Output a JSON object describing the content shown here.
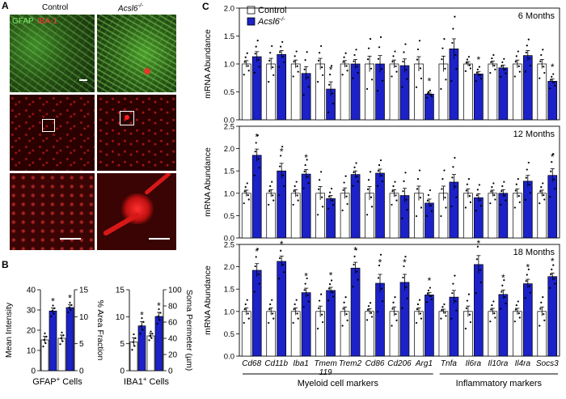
{
  "panel_a": {
    "letter": "A",
    "col_labels": [
      "Control",
      "Acsl6-/-"
    ],
    "stain_labels": {
      "gfap": "GFAP",
      "iba1": "IBA-1"
    }
  },
  "panel_b": {
    "letter": "B",
    "colors": {
      "control": "#ffffff",
      "acsl6": "#1c22c8"
    }
  },
  "panel_c": {
    "letter": "C",
    "legend": [
      "Control",
      "Acsl6-/-"
    ],
    "colors": {
      "control": "#ffffff",
      "acsl6": "#1c22c8"
    }
  },
  "chart_data": [
    {
      "type": "bar",
      "panel": "B-left",
      "xlabel": "GFAP+ Cells",
      "ylabel_left": "Mean Intensity",
      "ylabel_right": "% Area Fraction",
      "ylim_left": [
        0,
        40
      ],
      "ylim_right": [
        0,
        15
      ],
      "yticks_left": [
        0,
        10,
        20,
        30,
        40
      ],
      "yticks_right": [
        0,
        5,
        10,
        15
      ],
      "groups": [
        {
          "axis": "left",
          "control": 15.2,
          "acsl6": 29.5,
          "control_err": 1.8,
          "acsl6_err": 1.5,
          "significant": true
        },
        {
          "axis": "right",
          "control": 6.0,
          "acsl6": 11.7,
          "control_err": 0.6,
          "acsl6_err": 0.5,
          "significant": true
        }
      ]
    },
    {
      "type": "bar",
      "panel": "B-right",
      "xlabel": "IBA1+ Cells",
      "ylabel_right": "Soma Perimeter (µm)",
      "ylim_left": [
        0,
        15
      ],
      "ylim_right": [
        0,
        100
      ],
      "yticks_left": [
        0,
        5,
        10,
        15
      ],
      "yticks_right": [
        0,
        20,
        40,
        60,
        80,
        100
      ],
      "groups": [
        {
          "axis": "left",
          "control": 5.3,
          "acsl6": 8.3,
          "control_err": 0.8,
          "acsl6_err": 0.8,
          "significant": true
        },
        {
          "axis": "right",
          "control": 43,
          "acsl6": 67,
          "control_err": 3,
          "acsl6_err": 5,
          "significant": true
        }
      ]
    },
    {
      "type": "bar",
      "panel": "C",
      "ylabel": "mRNA Abundance",
      "categories": [
        "Cd68",
        "Cd11b",
        "Iba1",
        "Tmem 119",
        "Trem2",
        "Cd86",
        "Cd206",
        "Arg1",
        "Tnfa",
        "Il6ra",
        "Il10ra",
        "Il4ra",
        "Socs3"
      ],
      "group_labels": [
        "Myeloid cell markers",
        "Inflammatory markers"
      ],
      "subplots": [
        {
          "title": "6 Months",
          "ylim": [
            0,
            2.0
          ],
          "yticks": [
            0.0,
            0.5,
            1.0,
            1.5,
            2.0
          ],
          "control": [
            1.0,
            1.0,
            1.0,
            1.0,
            1.0,
            1.0,
            1.0,
            1.0,
            1.0,
            1.0,
            1.0,
            1.0,
            1.0
          ],
          "acsl6": [
            1.13,
            1.17,
            0.83,
            0.55,
            1.0,
            1.0,
            0.97,
            0.46,
            1.27,
            0.82,
            0.93,
            1.15,
            0.69
          ],
          "control_err": [
            0.06,
            0.1,
            0.07,
            0.1,
            0.06,
            0.14,
            0.07,
            0.13,
            0.14,
            0.04,
            0.05,
            0.07,
            0.08
          ],
          "acsl6_err": [
            0.09,
            0.07,
            0.12,
            0.13,
            0.08,
            0.15,
            0.12,
            0.02,
            0.18,
            0.04,
            0.05,
            0.09,
            0.04
          ],
          "significant": [
            false,
            false,
            false,
            true,
            false,
            false,
            false,
            true,
            false,
            true,
            false,
            false,
            true
          ]
        },
        {
          "title": "12 Months",
          "ylim": [
            0,
            2.5
          ],
          "yticks": [
            0.0,
            0.5,
            1.0,
            1.5,
            2.0,
            2.5
          ],
          "control": [
            1.0,
            1.0,
            1.0,
            1.0,
            1.0,
            1.0,
            1.0,
            1.0,
            1.0,
            1.0,
            1.0,
            1.0,
            1.0
          ],
          "acsl6": [
            1.85,
            1.5,
            1.43,
            0.88,
            1.42,
            1.45,
            0.95,
            0.78,
            1.25,
            0.9,
            1.0,
            1.27,
            1.4
          ],
          "control_err": [
            0.07,
            0.08,
            0.08,
            0.15,
            0.12,
            0.15,
            0.08,
            0.16,
            0.16,
            0.1,
            0.07,
            0.1,
            0.07
          ],
          "acsl6_err": [
            0.14,
            0.17,
            0.1,
            0.07,
            0.08,
            0.09,
            0.16,
            0.09,
            0.17,
            0.09,
            0.08,
            0.13,
            0.15
          ],
          "significant": [
            true,
            true,
            true,
            false,
            false,
            false,
            false,
            false,
            false,
            false,
            false,
            false,
            true
          ]
        },
        {
          "title": "18 Months",
          "ylim": [
            0,
            2.5
          ],
          "yticks": [
            0.0,
            0.5,
            1.0,
            1.5,
            2.0,
            2.5
          ],
          "control": [
            1.0,
            1.0,
            1.0,
            1.0,
            1.0,
            1.0,
            1.0,
            1.0,
            1.0,
            1.0,
            1.0,
            1.0,
            1.0
          ],
          "acsl6": [
            1.92,
            2.12,
            1.42,
            1.47,
            1.97,
            1.63,
            1.65,
            1.37,
            1.32,
            2.05,
            1.38,
            1.62,
            1.78
          ],
          "control_err": [
            0.08,
            0.08,
            0.08,
            0.12,
            0.1,
            0.06,
            0.1,
            0.08,
            0.05,
            0.12,
            0.07,
            0.07,
            0.1
          ],
          "acsl6_err": [
            0.15,
            0.12,
            0.1,
            0.07,
            0.13,
            0.2,
            0.18,
            0.05,
            0.15,
            0.2,
            0.1,
            0.1,
            0.08
          ],
          "significant": [
            true,
            true,
            true,
            true,
            true,
            true,
            true,
            true,
            false,
            true,
            true,
            true,
            true
          ]
        }
      ]
    }
  ]
}
